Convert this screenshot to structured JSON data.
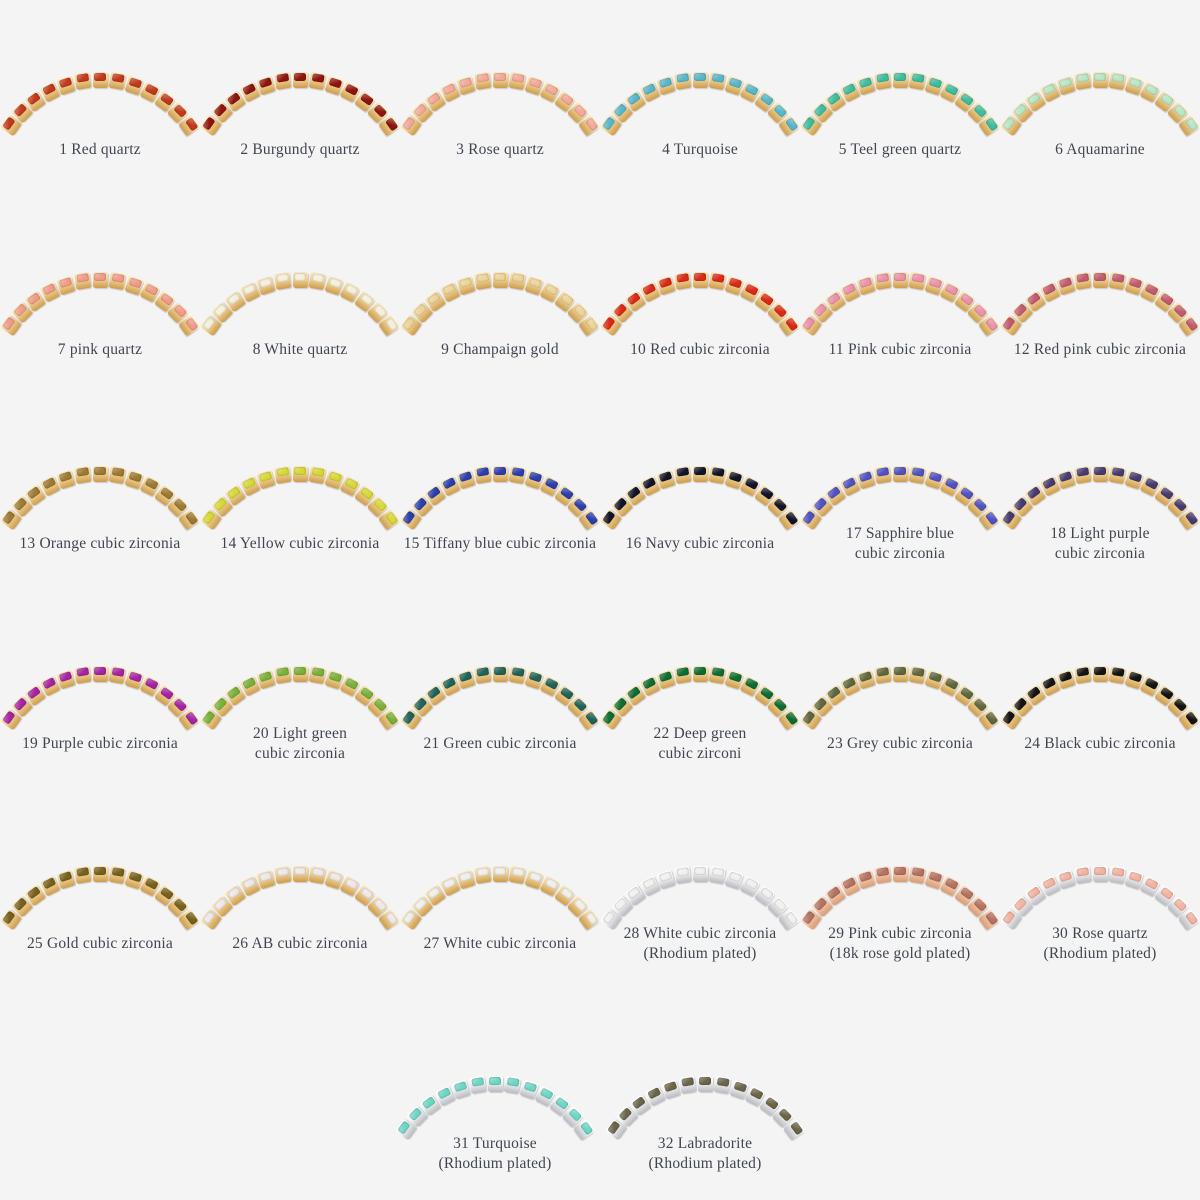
{
  "page": {
    "background": "#f4f4f5",
    "text_color": "#404650"
  },
  "bands": {
    "gold": {
      "light": "#f9e9c0",
      "face": "#f1d190",
      "dark": "#cc9c4e"
    },
    "silver": {
      "light": "#ffffff",
      "face": "#efeff1",
      "dark": "#b9babf"
    },
    "rose": {
      "light": "#fbe2cd",
      "face": "#f2c7a8",
      "dark": "#d99b73"
    }
  },
  "rows": [
    {
      "items": [
        {
          "label": "1 Red quartz",
          "stone": "#c2391c",
          "band": "gold"
        },
        {
          "label": "2 Burgundy quartz",
          "stone": "#8e150e",
          "band": "gold"
        },
        {
          "label": "3 Rose quartz",
          "stone": "#f3a99b",
          "band": "gold"
        },
        {
          "label": "4 Turquoise",
          "stone": "#58b7cd",
          "band": "gold"
        },
        {
          "label": "5 Teel green quartz",
          "stone": "#3fbda1",
          "band": "gold"
        },
        {
          "label": "6 Aquamarine",
          "stone": "#b9e6c6",
          "band": "gold"
        }
      ]
    },
    {
      "items": [
        {
          "label": "7 pink quartz",
          "stone": "#f19c8a",
          "band": "gold"
        },
        {
          "label": "8 White quartz",
          "stone": "#f5efdb",
          "band": "gold"
        },
        {
          "label": "9 Champaign gold",
          "stone": "#ecd49a",
          "band": "gold"
        },
        {
          "label": "10 Red cubic zirconia",
          "stone": "#da2a18",
          "band": "gold"
        },
        {
          "label": "11 Pink cubic zirconia",
          "stone": "#ec93ab",
          "band": "gold"
        },
        {
          "label": "12 Red pink cubic zirconia",
          "stone": "#c25c70",
          "band": "gold"
        }
      ]
    },
    {
      "items": [
        {
          "label": "13 Orange cubic zirconia",
          "stone": "#9d7a35",
          "band": "gold"
        },
        {
          "label": "14 Yellow cubic zirconia",
          "stone": "#d6d938",
          "band": "gold"
        },
        {
          "label": "15 Tiffany blue cubic zirconia",
          "stone": "#2b3fae",
          "band": "gold"
        },
        {
          "label": "16 Navy cubic zirconia",
          "stone": "#11142a",
          "band": "gold"
        },
        {
          "label": "17 Sapphire blue\ncubic zirconia",
          "stone": "#5053c4",
          "band": "gold"
        },
        {
          "label": "18 Light purple\ncubic zirconia",
          "stone": "#473c72",
          "band": "gold"
        }
      ]
    },
    {
      "items": [
        {
          "label": "19 Purple cubic zirconia",
          "stone": "#a524a4",
          "band": "gold"
        },
        {
          "label": "20 Light green\ncubic zirconia",
          "stone": "#79b13c",
          "band": "gold"
        },
        {
          "label": "21 Green cubic zirconia",
          "stone": "#20635a",
          "band": "gold"
        },
        {
          "label": "22 Deep green\ncubic zirconi",
          "stone": "#0e6d33",
          "band": "gold"
        },
        {
          "label": "23 Grey cubic zirconia",
          "stone": "#5f6841",
          "band": "gold"
        },
        {
          "label": "24 Black cubic zirconia",
          "stone": "#141414",
          "band": "gold"
        }
      ]
    },
    {
      "items": [
        {
          "label": "25 Gold cubic zirconia",
          "stone": "#77611f",
          "band": "gold"
        },
        {
          "label": "26 AB cubic zirconia",
          "stone": "#efe8e6",
          "band": "gold"
        },
        {
          "label": "27 White cubic zirconia",
          "stone": "#f0efe9",
          "band": "gold"
        },
        {
          "label": "28 White cubic zirconia\n(Rhodium plated)",
          "stone": "#f1f1f0",
          "band": "silver"
        },
        {
          "label": "29 Pink cubic zirconia\n(18k rose gold plated)",
          "stone": "#b57363",
          "band": "rose"
        },
        {
          "label": "30 Rose quartz\n(Rhodium plated)",
          "stone": "#f3b4a1",
          "band": "silver"
        }
      ]
    },
    {
      "items": [
        {
          "label": "31 Turquoise\n(Rhodium plated)",
          "stone": "#6fd6c6",
          "band": "silver"
        },
        {
          "label": "32 Labradorite\n(Rhodium plated)",
          "stone": "#6b664a",
          "band": "silver"
        }
      ]
    }
  ]
}
